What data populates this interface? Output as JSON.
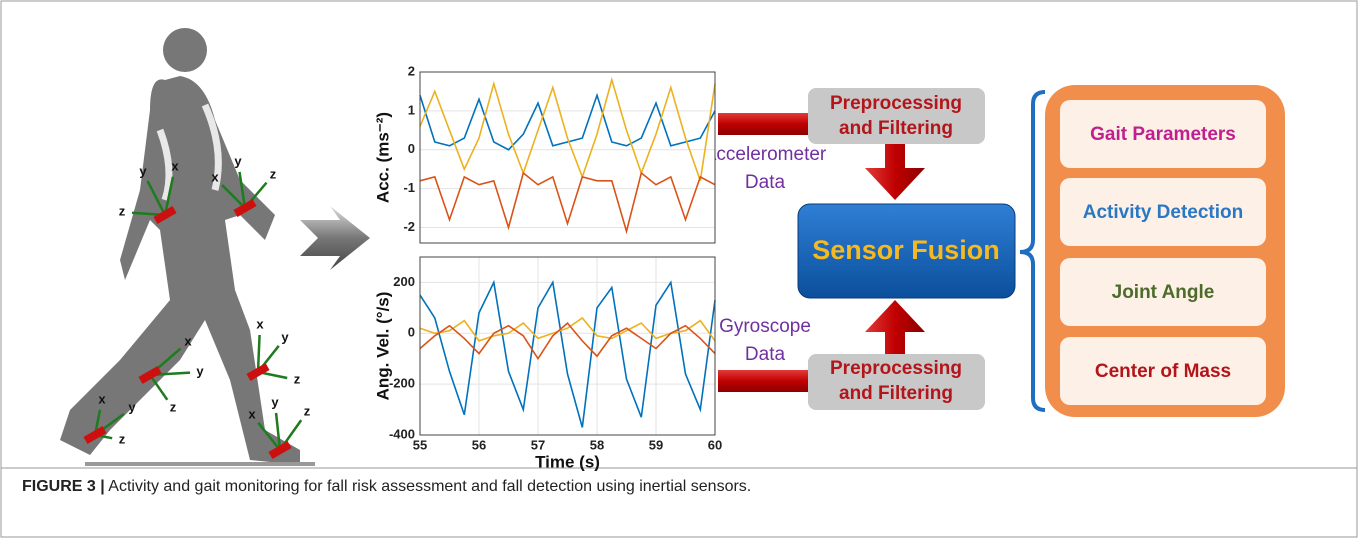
{
  "sensors": [
    {
      "labels": [
        "x",
        "y",
        "z"
      ]
    },
    {
      "labels": [
        "x",
        "y",
        "z"
      ]
    },
    {
      "labels": [
        "x",
        "y",
        "z"
      ]
    },
    {
      "labels": [
        "x",
        "y",
        "z"
      ]
    },
    {
      "labels": [
        "x",
        "y",
        "z"
      ]
    },
    {
      "labels": [
        "x",
        "y",
        "z"
      ]
    }
  ],
  "charts": [
    {
      "type": "line",
      "ylabel": "Acc. (ms⁻²)",
      "ylim": [
        -2.4,
        2
      ],
      "yticks": [
        -2,
        -1,
        0,
        1,
        2
      ],
      "xlim": [
        55,
        60
      ],
      "grid": true,
      "x": [
        55,
        55.25,
        55.5,
        55.75,
        56,
        56.25,
        56.5,
        56.75,
        57,
        57.25,
        57.5,
        57.75,
        58,
        58.25,
        58.5,
        58.75,
        59,
        59.25,
        59.5,
        59.75,
        60
      ],
      "series": [
        {
          "color": "#0072bd",
          "values": [
            1.4,
            0.2,
            0.1,
            0.3,
            1.3,
            0.2,
            0,
            0.4,
            1.2,
            0.1,
            0.2,
            0.3,
            1.4,
            0.2,
            0.1,
            0.3,
            1.2,
            0.1,
            0.2,
            0.3,
            1.0
          ]
        },
        {
          "color": "#edb120",
          "values": [
            0.6,
            1.5,
            0.5,
            -0.5,
            0.3,
            1.7,
            0.4,
            -0.6,
            0.5,
            1.6,
            0.3,
            -0.7,
            0.4,
            1.8,
            0.5,
            -0.6,
            0.4,
            1.6,
            0.3,
            -0.8,
            1.7
          ]
        },
        {
          "color": "#d95319",
          "values": [
            -0.8,
            -0.7,
            -1.8,
            -0.7,
            -0.9,
            -0.8,
            -2.0,
            -0.6,
            -0.9,
            -0.7,
            -1.9,
            -0.7,
            -0.8,
            -0.8,
            -2.1,
            -0.6,
            -0.9,
            -0.7,
            -1.8,
            -0.7,
            -0.9
          ]
        }
      ]
    },
    {
      "type": "line",
      "ylabel": "Ang. Vel. (°/s)",
      "ylim": [
        -400,
        300
      ],
      "yticks": [
        -400,
        -200,
        0,
        200
      ],
      "xlim": [
        55,
        60
      ],
      "xticks": [
        55,
        56,
        57,
        58,
        59,
        60
      ],
      "xlabel": "Time (s)",
      "grid": true,
      "x": [
        55,
        55.25,
        55.5,
        55.75,
        56,
        56.25,
        56.5,
        56.75,
        57,
        57.25,
        57.5,
        57.75,
        58,
        58.25,
        58.5,
        58.75,
        59,
        59.25,
        59.5,
        59.75,
        60
      ],
      "series": [
        {
          "color": "#0072bd",
          "values": [
            150,
            60,
            -150,
            -320,
            80,
            200,
            -150,
            -300,
            100,
            200,
            -160,
            -370,
            100,
            180,
            -180,
            -330,
            110,
            200,
            -160,
            -300,
            130
          ]
        },
        {
          "color": "#edb120",
          "values": [
            20,
            0,
            10,
            50,
            -30,
            -10,
            0,
            40,
            -20,
            0,
            20,
            60,
            -10,
            -20,
            10,
            40,
            -20,
            0,
            10,
            50,
            -30
          ]
        },
        {
          "color": "#d95319",
          "values": [
            -60,
            -10,
            30,
            -20,
            -80,
            0,
            30,
            -10,
            -100,
            -10,
            40,
            -30,
            -90,
            -10,
            20,
            -20,
            -60,
            0,
            30,
            -20,
            -80
          ]
        }
      ]
    }
  ],
  "flow": {
    "accelerometer": [
      "Accelerometer",
      "Data"
    ],
    "gyroscope": [
      "Gyroscope",
      "Data"
    ],
    "preprocess_top": [
      "Preprocessing",
      "and Filtering"
    ],
    "preprocess_bottom": [
      "Preprocessing",
      "and Filtering"
    ],
    "fusion": "Sensor Fusion"
  },
  "outputs": [
    "Gait Parameters",
    "Activity Detection",
    "Joint Angle",
    "Center of Mass"
  ],
  "caption": {
    "label": "FIGURE 3 |",
    "text": "Activity and gait monitoring for fall risk assessment and fall detection using inertial sensors."
  }
}
